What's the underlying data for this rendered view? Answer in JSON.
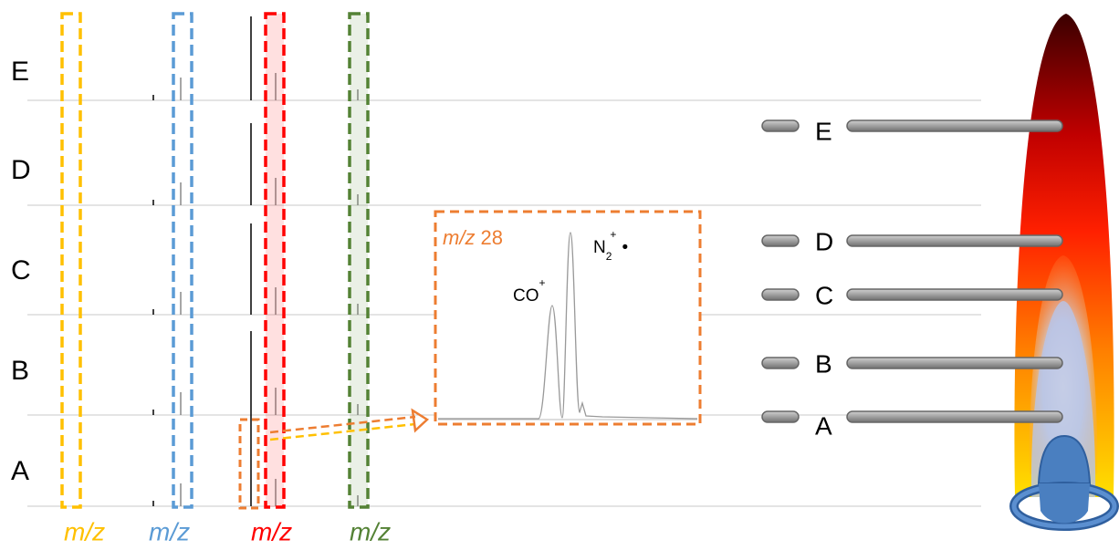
{
  "rows": [
    {
      "label": "E"
    },
    {
      "label": "D"
    },
    {
      "label": "C"
    },
    {
      "label": "B"
    },
    {
      "label": "A"
    }
  ],
  "mz_labels": [
    {
      "text": "m/z",
      "color": "#ffc000"
    },
    {
      "text": "m/z",
      "color": "#5b9bd5"
    },
    {
      "text": "m/z",
      "color": "#ff0000"
    },
    {
      "text": "m/z",
      "color": "#548235"
    }
  ],
  "inset": {
    "title_italic": "m/z",
    "title_number": "28",
    "peak_co": {
      "base": "CO",
      "sup": "+"
    },
    "peak_n2": {
      "base": "N",
      "sub": "2",
      "sup": "+",
      "dot": "•"
    }
  },
  "probes": [
    {
      "label": "E"
    },
    {
      "label": "D"
    },
    {
      "label": "C"
    },
    {
      "label": "B"
    },
    {
      "label": "A"
    }
  ]
}
